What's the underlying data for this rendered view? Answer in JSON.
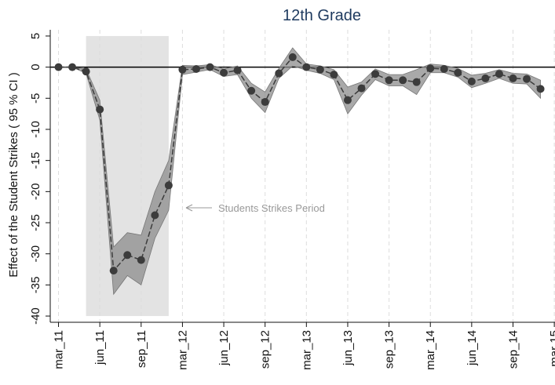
{
  "chart_data": {
    "type": "line",
    "title": "12th Grade",
    "y_label": "Effect of the Student Strikes ( 95 % CI )",
    "annotation": "Students Strikes Period",
    "x": [
      0,
      1,
      2,
      3,
      4,
      5,
      6,
      7,
      8,
      9,
      10,
      11,
      12,
      13,
      14,
      15,
      16,
      17,
      18,
      19,
      20,
      21,
      22,
      23,
      24,
      25,
      26,
      27,
      28,
      29,
      30,
      31,
      32,
      33,
      34,
      35
    ],
    "values": [
      0,
      0,
      -0.7,
      -6.8,
      -32.7,
      -30.2,
      -31,
      -23.8,
      -19,
      -0.4,
      -0.3,
      0,
      -0.9,
      -0.5,
      -3.8,
      -5.6,
      -1,
      1.6,
      0,
      -0.4,
      -1.2,
      -5.3,
      -3.4,
      -1.1,
      -2.1,
      -2.1,
      -2.4,
      -0.2,
      -0.3,
      -0.9,
      -2.3,
      -1.8,
      -1.1,
      -1.8,
      -1.9,
      -3.5
    ],
    "lower": [
      0,
      0,
      -1,
      -8.5,
      -36.5,
      -33.5,
      -35,
      -27.5,
      -23,
      -1.2,
      -0.8,
      -0.4,
      -1.5,
      -1.2,
      -5,
      -7.3,
      -1.8,
      0.2,
      -0.5,
      -1,
      -2,
      -7.5,
      -4.5,
      -2,
      -3,
      -3,
      -4.4,
      -0.9,
      -0.9,
      -1.6,
      -3.3,
      -2.6,
      -1.8,
      -2.6,
      -2.7,
      -5
    ],
    "upper": [
      0,
      0,
      -0.3,
      -5.3,
      -28.9,
      -26.6,
      -27,
      -20,
      -15,
      0.3,
      0.2,
      0.4,
      -0.3,
      0.2,
      -2.6,
      -4,
      -0.2,
      3.1,
      0.5,
      0.2,
      -0.4,
      -3.2,
      -2.4,
      -0.3,
      -1.2,
      -1.2,
      -0.4,
      0.5,
      0.3,
      -0.2,
      -1.3,
      -1,
      -0.4,
      -1,
      -1.1,
      -2.1
    ],
    "color": "#3c3c3c",
    "band_color": "#8c8c8c",
    "shaded_region": {
      "x": [
        2,
        8
      ],
      "y": [
        -40,
        5
      ],
      "color": "#e3e3e3"
    },
    "xlim": [
      -0.6,
      36.05
    ],
    "ylim": [
      -41,
      6
    ],
    "xticks": [
      {
        "value": 0,
        "label": "mar_11"
      },
      {
        "value": 3,
        "label": "jun_11"
      },
      {
        "value": 6,
        "label": "sep_11"
      },
      {
        "value": 9,
        "label": "mar_12"
      },
      {
        "value": 12,
        "label": "jun_12"
      },
      {
        "value": 15,
        "label": "sep_12"
      },
      {
        "value": 18,
        "label": "mar_13"
      },
      {
        "value": 21,
        "label": "jun_13"
      },
      {
        "value": 24,
        "label": "sep_13"
      },
      {
        "value": 27,
        "label": "mar_14"
      },
      {
        "value": 30,
        "label": "jun_14"
      },
      {
        "value": 33,
        "label": "sep_14"
      },
      {
        "value": 36,
        "label": "mar 15"
      }
    ],
    "yticks": [
      5,
      0,
      -5,
      -10,
      -15,
      -20,
      -25,
      -30,
      -35,
      -40
    ],
    "grid": true
  }
}
